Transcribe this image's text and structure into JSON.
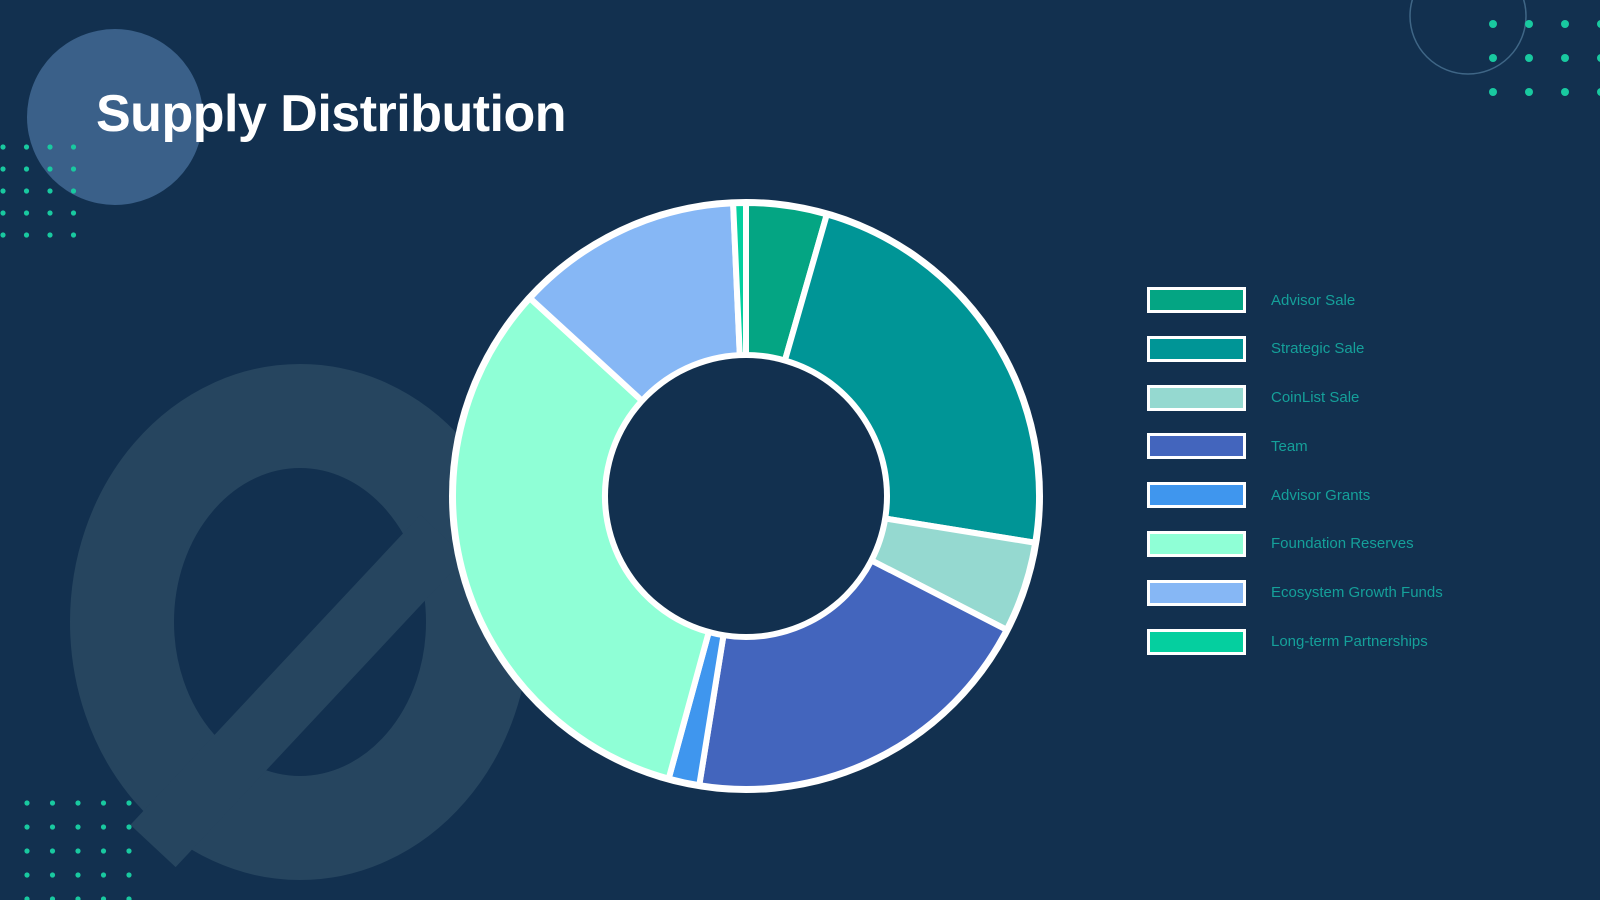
{
  "colors": {
    "background": "#12304f",
    "logo_watermark": "#26455f",
    "deco_circle": "#3a6089",
    "deco_dots": "#19c9a0",
    "title": "#ffffff",
    "legend_text": "#15a09a",
    "slice_border": "#ffffff"
  },
  "decorations": {
    "logo_icon": "oasis-logo-watermark-icon",
    "circle_icon": "decorative-circle-icon",
    "dots_icon": "decorative-dot-grid-icon"
  },
  "chart_data": {
    "type": "pie",
    "donut": true,
    "title": "Supply Distribution",
    "legend_position": "right",
    "series": [
      {
        "name": "Advisor Sale",
        "value": 4.45,
        "color": "#04a583"
      },
      {
        "name": "Strategic Sale",
        "value": 23.1,
        "color": "#009596"
      },
      {
        "name": "CoinList Sale",
        "value": 5.0,
        "color": "#95d9d0"
      },
      {
        "name": "Team",
        "value": 20.0,
        "color": "#4365bd"
      },
      {
        "name": "Advisor Grants",
        "value": 1.7,
        "color": "#3f96ee"
      },
      {
        "name": "Foundation Reserves",
        "value": 32.55,
        "color": "#8fffd6"
      },
      {
        "name": "Ecosystem Growth Funds",
        "value": 12.5,
        "color": "#86b7f5"
      },
      {
        "name": "Long-term Partnerships",
        "value": 0.7,
        "color": "#05cf9f"
      }
    ]
  }
}
